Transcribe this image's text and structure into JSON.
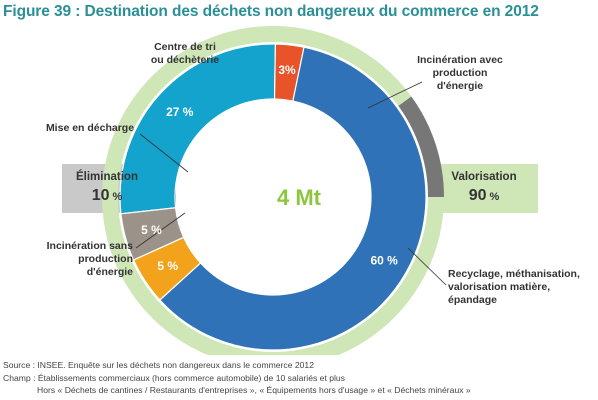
{
  "title": "Figure 39 : Destination des déchets non dangereux du commerce en 2012",
  "center_label": "4 Mt",
  "groups": {
    "elimination": {
      "label": "Élimination",
      "value": "10",
      "unit": "%"
    },
    "valorisation": {
      "label": "Valorisation",
      "value": "90",
      "unit": "%"
    }
  },
  "category_labels": {
    "tri": [
      "Centre de tri",
      "ou déchèterie"
    ],
    "incineration_avec": [
      "Incinération avec",
      "production",
      "d'énergie"
    ],
    "decharge": [
      "Mise en décharge"
    ],
    "incineration_sans": [
      "Incinération sans",
      "production",
      "d'énergie"
    ],
    "recyclage": [
      "Recyclage, méthanisation,",
      "valorisation matière,",
      "épandage"
    ]
  },
  "footnotes": [
    "Source : INSEE. Enquête sur les déchets non dangereux dans le commerce 2012",
    "Champ : Établissements commerciaux (hors commerce automobile) de 10 salariés et plus",
    "Hors « Déchets de cantines / Restaurants d'entreprises », « Équipements hors d'usage » et « Déchets minéraux »"
  ],
  "colors": {
    "title": "#2a8f96",
    "center": "#8cc63f",
    "outer_green": "#cfe6b7",
    "outer_gray": "#777777",
    "elim_box": "#c9c9c9",
    "valo_box": "#cfe6b7"
  },
  "chart_data": {
    "type": "pie",
    "variant": "nested donut",
    "total_label": "4 Mt",
    "slices": [
      {
        "label": "Centre de tri ou déchèterie",
        "value": 27,
        "display": "27 %",
        "color": "#13a3cc"
      },
      {
        "label": "Incinération avec production d'énergie",
        "value": 3,
        "display": "3%",
        "color": "#e8532a"
      },
      {
        "label": "Recyclage, méthanisation, valorisation matière, épandage",
        "value": 60,
        "display": "60 %",
        "color": "#2f72b8"
      },
      {
        "label": "Incinération sans production d'énergie",
        "value": 5,
        "display": "5 %",
        "color": "#f2a31b"
      },
      {
        "label": "Mise en décharge",
        "value": 5,
        "display": "5 %",
        "color": "#9b938a"
      }
    ],
    "outer_ring": [
      {
        "label": "Valorisation",
        "value": 90,
        "color": "#cfe6b7"
      },
      {
        "label": "Élimination",
        "value": 10,
        "color": "#777777"
      }
    ]
  }
}
